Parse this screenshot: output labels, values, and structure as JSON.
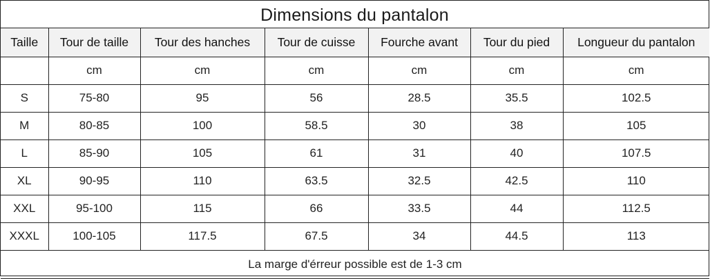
{
  "title": "Dimensions du pantalon",
  "columns": [
    "Taille",
    "Tour de taille",
    "Tour des hanches",
    "Tour de cuisse",
    "Fourche avant",
    "Tour du pied",
    "Longueur du pantalon"
  ],
  "units": [
    "",
    "cm",
    "cm",
    "cm",
    "cm",
    "cm",
    "cm"
  ],
  "rows": [
    [
      "S",
      "75-80",
      "95",
      "56",
      "28.5",
      "35.5",
      "102.5"
    ],
    [
      "M",
      "80-85",
      "100",
      "58.5",
      "30",
      "38",
      "105"
    ],
    [
      "L",
      "85-90",
      "105",
      "61",
      "31",
      "40",
      "107.5"
    ],
    [
      "XL",
      "90-95",
      "110",
      "63.5",
      "32.5",
      "42.5",
      "110"
    ],
    [
      "XXL",
      "95-100",
      "115",
      "66",
      "33.5",
      "44",
      "112.5"
    ],
    [
      "XXXL",
      "100-105",
      "117.5",
      "67.5",
      "34",
      "44.5",
      "113"
    ]
  ],
  "note": "La marge d'érreur possible est de 1-3 cm"
}
